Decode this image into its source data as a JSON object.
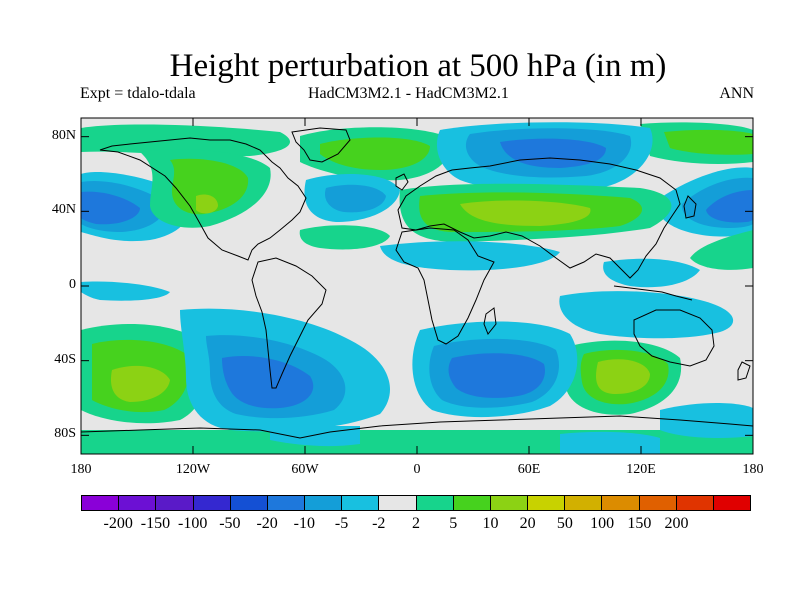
{
  "header": {
    "title": "Height perturbation at 500 hPa (in m)",
    "experiment": "Expt = tdalo-tdala",
    "models": "HadCM3M2.1 - HadCM3M2.1",
    "season": "ANN"
  },
  "map": {
    "projection": "cylindrical equidistant",
    "lon_range": [
      -180,
      180
    ],
    "lat_range": [
      -90,
      90
    ],
    "background_color": "#e6e6e6",
    "y_ticks": [
      {
        "label": "80N",
        "value": 80
      },
      {
        "label": "40N",
        "value": 40
      },
      {
        "label": "0",
        "value": 0
      },
      {
        "label": "40S",
        "value": -40
      },
      {
        "label": "80S",
        "value": -80
      }
    ],
    "x_ticks": [
      {
        "label": "180",
        "value": -180
      },
      {
        "label": "120W",
        "value": -120
      },
      {
        "label": "60W",
        "value": -60
      },
      {
        "label": "0",
        "value": 0
      },
      {
        "label": "60E",
        "value": 60
      },
      {
        "label": "120E",
        "value": 120
      },
      {
        "label": "180",
        "value": 180
      }
    ]
  },
  "colorbar": {
    "colors": [
      "#8a00d8",
      "#6c10d4",
      "#5a1ac8",
      "#3428d0",
      "#1450d4",
      "#1e78dc",
      "#149ed8",
      "#18c0e0",
      "#e6e6e6",
      "#17d48c",
      "#46d21e",
      "#8cd214",
      "#c8d200",
      "#d2b000",
      "#dc8c00",
      "#e06000",
      "#e03400",
      "#e00000"
    ],
    "labels": [
      "-200",
      "-150",
      "-100",
      "-50",
      "-20",
      "-10",
      "-5",
      "-2",
      "2",
      "5",
      "10",
      "20",
      "50",
      "100",
      "150",
      "200"
    ]
  },
  "chart_data": {
    "type": "heatmap",
    "title": "Height perturbation at 500 hPa (in m)",
    "units": "m",
    "levels": [
      -200,
      -150,
      -100,
      -50,
      -20,
      -10,
      -5,
      -2,
      2,
      5,
      10,
      20,
      50,
      100,
      150,
      200
    ],
    "features": [
      {
        "region": "North Pacific (~160W-170E, 40N)",
        "sign": "negative",
        "approx_value": -20
      },
      {
        "region": "Northern Eurasia (~30E-130E, 60-75N)",
        "sign": "negative",
        "approx_value": -20
      },
      {
        "region": "North Atlantic (~40W, 45N)",
        "sign": "negative",
        "approx_value": -10
      },
      {
        "region": "Mediterranean to Central Asia (~10E-100E, 35-45N)",
        "sign": "positive",
        "approx_value": 20
      },
      {
        "region": "North America west (~120W-80W, 40-55N)",
        "sign": "positive",
        "approx_value": 10
      },
      {
        "region": "Arctic / North Atlantic (~70W-0, 65-80N)",
        "sign": "positive",
        "approx_value": 10
      },
      {
        "region": "Southeast Pacific (~130W, 45S)",
        "sign": "positive",
        "approx_value": 20
      },
      {
        "region": "Southern Indian Ocean (~100E, 45S)",
        "sign": "positive",
        "approx_value": 20
      },
      {
        "region": "South Atlantic / Indian (~20E-60E, 45S)",
        "sign": "negative",
        "approx_value": -20
      },
      {
        "region": "Drake Passage (~60W-90W, 50S)",
        "sign": "negative",
        "approx_value": -20
      },
      {
        "region": "Antarctic coast (~0-120E, 70S)",
        "sign": "positive",
        "approx_value": 5
      }
    ]
  }
}
